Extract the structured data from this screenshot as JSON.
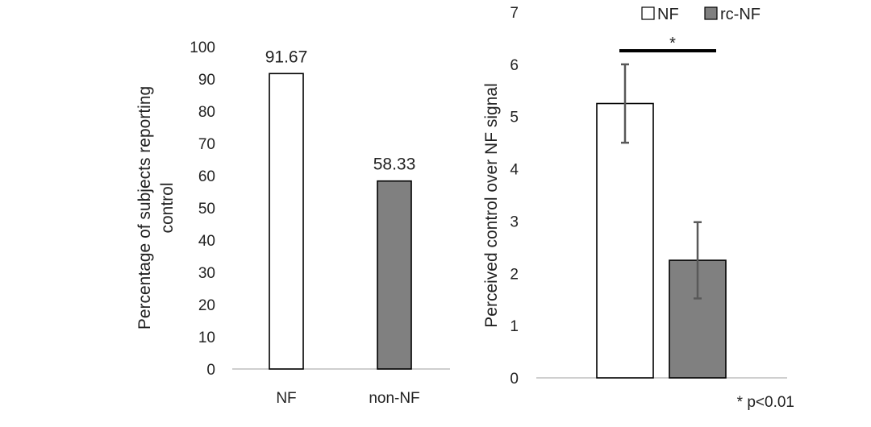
{
  "chart_data": [
    {
      "type": "bar",
      "categories": [
        "NF",
        "non-NF"
      ],
      "values": [
        91.67,
        58.33
      ],
      "data_labels": [
        "91.67",
        "58.33"
      ],
      "ylabel": [
        "Percentage of subjects reporting",
        "control"
      ],
      "ylim": [
        0,
        100
      ],
      "yticks": [
        "0",
        "10",
        "20",
        "30",
        "40",
        "50",
        "60",
        "70",
        "80",
        "90",
        "100"
      ],
      "bar_colors": [
        "#ffffff",
        "#808080"
      ],
      "grid": false
    },
    {
      "type": "bar",
      "series": [
        {
          "name": "NF",
          "values": [
            5.25
          ],
          "error": [
            0.75
          ],
          "color": "#ffffff"
        },
        {
          "name": "rc-NF",
          "values": [
            2.25
          ],
          "error": [
            0.73
          ],
          "color": "#808080"
        }
      ],
      "ylabel": "Perceived control over NF signal",
      "ylim": [
        0,
        7
      ],
      "yticks": [
        "0",
        "1",
        "2",
        "3",
        "4",
        "5",
        "6",
        "7"
      ],
      "legend_position": "top-right",
      "significance_marker": "*",
      "footnote": "* p<0.01",
      "grid": false
    }
  ],
  "colors": {
    "bar_outline": "#000000",
    "error_bar": "#595959",
    "axis": "#bfbfbf"
  }
}
